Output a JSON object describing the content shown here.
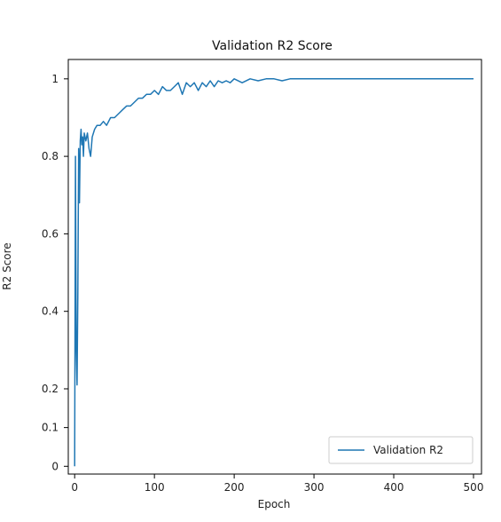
{
  "chart_data": {
    "type": "line",
    "title": "Validation R2 Score",
    "xlabel": "Epoch",
    "ylabel": "R2 Score",
    "xlim": [
      -8,
      510
    ],
    "ylim": [
      -0.02,
      1.05
    ],
    "grid": false,
    "legend_position": "bottom-right",
    "x_ticks": [
      0,
      100,
      200,
      300,
      400,
      500
    ],
    "x_tick_labels": [
      "0",
      "100",
      "200",
      "300",
      "400",
      "500"
    ],
    "y_ticks": [
      0,
      0.1,
      0.2,
      0.4,
      0.6,
      0.8,
      1
    ],
    "y_tick_labels": [
      "0",
      "0.1",
      "0.2",
      "0.4",
      "0.6",
      "0.8",
      "1"
    ],
    "series": [
      {
        "name": "Validation R2",
        "color": "#1f77b4",
        "x": [
          0,
          1,
          2,
          3,
          4,
          5,
          6,
          7,
          8,
          9,
          10,
          11,
          12,
          14,
          16,
          18,
          20,
          22,
          25,
          28,
          32,
          36,
          40,
          45,
          50,
          55,
          60,
          65,
          70,
          75,
          80,
          85,
          90,
          95,
          100,
          105,
          110,
          115,
          120,
          125,
          130,
          135,
          140,
          145,
          150,
          155,
          160,
          165,
          170,
          175,
          180,
          185,
          190,
          195,
          200,
          210,
          220,
          230,
          240,
          250,
          260,
          270,
          280,
          290,
          300,
          320,
          340,
          360,
          380,
          400,
          420,
          440,
          460,
          480,
          500
        ],
        "values": [
          0.0,
          0.8,
          0.3,
          0.21,
          0.45,
          0.82,
          0.68,
          0.84,
          0.87,
          0.83,
          0.85,
          0.8,
          0.86,
          0.84,
          0.86,
          0.82,
          0.8,
          0.85,
          0.87,
          0.88,
          0.88,
          0.89,
          0.88,
          0.9,
          0.9,
          0.91,
          0.92,
          0.93,
          0.93,
          0.94,
          0.95,
          0.95,
          0.96,
          0.96,
          0.97,
          0.96,
          0.98,
          0.97,
          0.97,
          0.98,
          0.99,
          0.96,
          0.99,
          0.98,
          0.99,
          0.97,
          0.99,
          0.98,
          0.995,
          0.98,
          0.995,
          0.99,
          0.995,
          0.99,
          1.0,
          0.99,
          1.0,
          0.995,
          1.0,
          1.0,
          0.995,
          1.0,
          1.0,
          1.0,
          1.0,
          1.0,
          1.0,
          1.0,
          1.0,
          1.0,
          1.0,
          1.0,
          1.0,
          1.0,
          1.0
        ]
      }
    ]
  }
}
